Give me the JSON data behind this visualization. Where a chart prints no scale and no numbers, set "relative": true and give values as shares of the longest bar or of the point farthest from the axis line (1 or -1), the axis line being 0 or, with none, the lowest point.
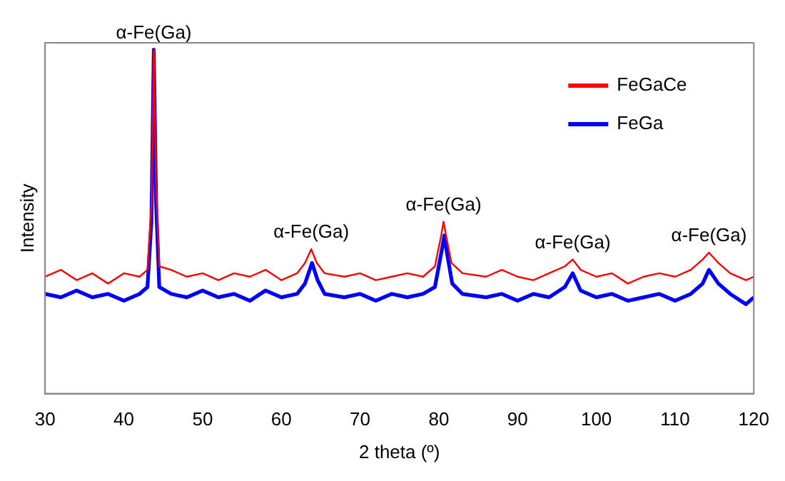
{
  "chart_data": {
    "type": "line",
    "relative": true,
    "xlabel": "2 theta (º)",
    "ylabel": "Intensity",
    "xlim": [
      30,
      120
    ],
    "xticks": [
      30,
      40,
      50,
      60,
      70,
      80,
      90,
      100,
      110,
      120
    ],
    "grid": false,
    "legend": "top right",
    "marker": "none",
    "line_style": "solid",
    "annotations": [
      {
        "text": "α-Fe(Ga)",
        "x": 43.8,
        "y": 1.0
      },
      {
        "text": "α-Fe(Ga)",
        "x": 63.8,
        "y": 0.42
      },
      {
        "text": "α-Fe(Ga)",
        "x": 80.6,
        "y": 0.5
      },
      {
        "text": "α-Fe(Ga)",
        "x": 97,
        "y": 0.39
      },
      {
        "text": "α-Fe(Ga)",
        "x": 114.3,
        "y": 0.41
      }
    ],
    "series": [
      {
        "name": "FeGaCe",
        "color": "#ff0000",
        "x": [
          30,
          32,
          34,
          36,
          38,
          40,
          42,
          43,
          43.5,
          43.8,
          44.1,
          44.5,
          46,
          48,
          50,
          52,
          54,
          56,
          58,
          60,
          62,
          63,
          63.8,
          64.5,
          65.5,
          68,
          70,
          72,
          74,
          76,
          78,
          79.5,
          80.3,
          80.6,
          81,
          81.6,
          83,
          86,
          88,
          90,
          92,
          94,
          96,
          97,
          98,
          100,
          102,
          104,
          106,
          108,
          110,
          112,
          113.5,
          114.3,
          115.5,
          117,
          119,
          120
        ],
        "values": [
          0.34,
          0.36,
          0.33,
          0.35,
          0.32,
          0.35,
          0.34,
          0.36,
          0.55,
          1.0,
          0.6,
          0.37,
          0.36,
          0.34,
          0.35,
          0.33,
          0.35,
          0.34,
          0.36,
          0.33,
          0.35,
          0.38,
          0.42,
          0.38,
          0.35,
          0.34,
          0.35,
          0.33,
          0.34,
          0.35,
          0.34,
          0.37,
          0.46,
          0.5,
          0.45,
          0.38,
          0.35,
          0.34,
          0.36,
          0.34,
          0.33,
          0.35,
          0.37,
          0.39,
          0.36,
          0.34,
          0.35,
          0.32,
          0.34,
          0.35,
          0.34,
          0.36,
          0.39,
          0.41,
          0.38,
          0.35,
          0.33,
          0.34
        ]
      },
      {
        "name": "FeGa",
        "color": "#0000ff",
        "x": [
          30,
          32,
          34,
          36,
          38,
          40,
          42,
          43,
          43.5,
          43.8,
          44.1,
          44.5,
          46,
          48,
          50,
          52,
          54,
          56,
          58,
          60,
          62,
          63,
          63.9,
          64.6,
          65.5,
          68,
          70,
          72,
          74,
          76,
          78,
          79.5,
          80.4,
          80.7,
          81.1,
          81.7,
          83,
          86,
          88,
          90,
          92,
          94,
          96,
          97,
          98,
          100,
          102,
          104,
          106,
          108,
          110,
          112,
          113.5,
          114.3,
          115.5,
          117,
          119,
          120
        ],
        "values": [
          0.29,
          0.28,
          0.3,
          0.28,
          0.29,
          0.27,
          0.29,
          0.31,
          0.5,
          1.0,
          0.55,
          0.31,
          0.29,
          0.28,
          0.3,
          0.28,
          0.29,
          0.27,
          0.3,
          0.28,
          0.29,
          0.32,
          0.38,
          0.33,
          0.29,
          0.28,
          0.29,
          0.27,
          0.29,
          0.28,
          0.29,
          0.31,
          0.42,
          0.46,
          0.4,
          0.32,
          0.29,
          0.28,
          0.29,
          0.27,
          0.29,
          0.28,
          0.31,
          0.35,
          0.3,
          0.28,
          0.29,
          0.27,
          0.28,
          0.29,
          0.27,
          0.29,
          0.32,
          0.36,
          0.32,
          0.29,
          0.26,
          0.28
        ]
      }
    ]
  }
}
